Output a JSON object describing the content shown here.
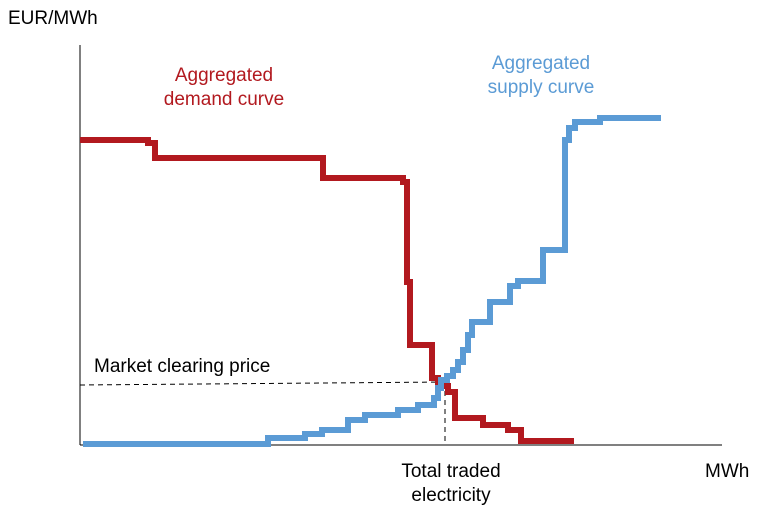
{
  "axes": {
    "y_label": "EUR/MWh",
    "x_label": "MWh"
  },
  "annotations": {
    "demand": [
      "Aggregated",
      "demand curve"
    ],
    "supply": [
      "Aggregated",
      "supply curve"
    ],
    "price": "Market clearing price",
    "quantity": [
      "Total traded",
      "electricity"
    ]
  }
}
